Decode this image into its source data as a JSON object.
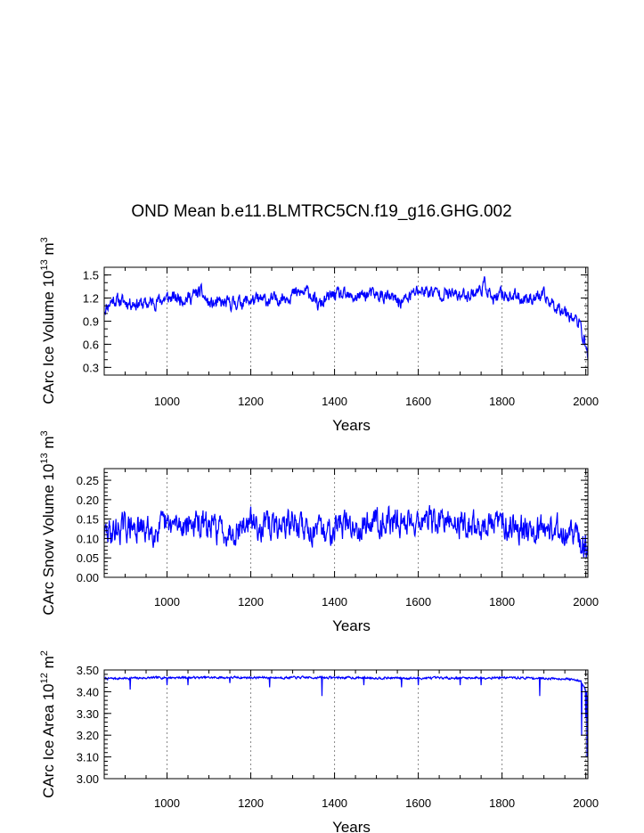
{
  "title": "OND Mean b.e11.BLMTRC5CN.f19_g16.GHG.002",
  "line_color": "#0000ff",
  "grid_color": "#888888",
  "chart_data": [
    {
      "type": "line",
      "id": "ice-volume",
      "ylabel_main": "CArc Ice Volume 10",
      "ylabel_sup": "13",
      "ylabel_unit": " m",
      "ylabel_unit_sup": "3",
      "xlabel": "Years",
      "xlim": [
        850,
        2005
      ],
      "ylim": [
        0.2,
        1.6
      ],
      "xticks": [
        1000,
        1200,
        1400,
        1600,
        1800,
        2000
      ],
      "xtick_labels": [
        "1000",
        "1200",
        "1400",
        "1600",
        "1800",
        "2000"
      ],
      "yticks": [
        0.3,
        0.6,
        0.9,
        1.2,
        1.5
      ],
      "ytick_labels": [
        "0.3",
        "0.6",
        "0.9",
        "1.2",
        "1.5"
      ],
      "y_minor_step": 0.1,
      "grid_x": [
        1000,
        1200,
        1400,
        1600,
        1800,
        2000
      ],
      "anchors": [
        [
          850,
          1.05
        ],
        [
          870,
          1.18
        ],
        [
          900,
          1.15
        ],
        [
          950,
          1.12
        ],
        [
          1000,
          1.2
        ],
        [
          1050,
          1.2
        ],
        [
          1080,
          1.28
        ],
        [
          1100,
          1.12
        ],
        [
          1150,
          1.13
        ],
        [
          1200,
          1.17
        ],
        [
          1250,
          1.17
        ],
        [
          1300,
          1.25
        ],
        [
          1340,
          1.28
        ],
        [
          1360,
          1.1
        ],
        [
          1400,
          1.25
        ],
        [
          1440,
          1.2
        ],
        [
          1480,
          1.25
        ],
        [
          1520,
          1.22
        ],
        [
          1560,
          1.15
        ],
        [
          1600,
          1.3
        ],
        [
          1650,
          1.27
        ],
        [
          1700,
          1.23
        ],
        [
          1740,
          1.28
        ],
        [
          1760,
          1.38
        ],
        [
          1780,
          1.15
        ],
        [
          1800,
          1.25
        ],
        [
          1850,
          1.2
        ],
        [
          1900,
          1.22
        ],
        [
          1920,
          1.12
        ],
        [
          1950,
          1.05
        ],
        [
          1970,
          0.95
        ],
        [
          1985,
          0.85
        ],
        [
          1995,
          0.68
        ],
        [
          2005,
          0.45
        ]
      ],
      "noise": 0.07,
      "seed": 11
    },
    {
      "type": "line",
      "id": "snow-volume",
      "ylabel_main": "CArc Snow Volume 10",
      "ylabel_sup": "13",
      "ylabel_unit": " m",
      "ylabel_unit_sup": "3",
      "xlabel": "Years",
      "xlim": [
        850,
        2005
      ],
      "ylim": [
        0.0,
        0.28
      ],
      "xticks": [
        1000,
        1200,
        1400,
        1600,
        1800,
        2000
      ],
      "xtick_labels": [
        "1000",
        "1200",
        "1400",
        "1600",
        "1800",
        "2000"
      ],
      "yticks": [
        0.0,
        0.05,
        0.1,
        0.15,
        0.2,
        0.25
      ],
      "ytick_labels": [
        "0.00",
        "0.05",
        "0.10",
        "0.15",
        "0.20",
        "0.25"
      ],
      "y_minor_step": 0.01,
      "grid_x": [
        1000,
        1200,
        1400,
        1600,
        1800,
        2000
      ],
      "anchors": [
        [
          850,
          0.11
        ],
        [
          900,
          0.13
        ],
        [
          950,
          0.12
        ],
        [
          1000,
          0.13
        ],
        [
          1050,
          0.14
        ],
        [
          1100,
          0.13
        ],
        [
          1150,
          0.12
        ],
        [
          1200,
          0.14
        ],
        [
          1250,
          0.13
        ],
        [
          1300,
          0.14
        ],
        [
          1350,
          0.12
        ],
        [
          1380,
          0.11
        ],
        [
          1400,
          0.14
        ],
        [
          1450,
          0.13
        ],
        [
          1500,
          0.15
        ],
        [
          1550,
          0.14
        ],
        [
          1600,
          0.15
        ],
        [
          1650,
          0.14
        ],
        [
          1700,
          0.14
        ],
        [
          1750,
          0.13
        ],
        [
          1800,
          0.14
        ],
        [
          1850,
          0.13
        ],
        [
          1900,
          0.13
        ],
        [
          1950,
          0.12
        ],
        [
          1980,
          0.1
        ],
        [
          2005,
          0.06
        ]
      ],
      "noise": 0.028,
      "seed": 29
    },
    {
      "type": "line",
      "id": "ice-area",
      "ylabel_main": "CArc Ice Area 10",
      "ylabel_sup": "12",
      "ylabel_unit": " m",
      "ylabel_unit_sup": "2",
      "xlabel": "Years",
      "xlim": [
        850,
        2005
      ],
      "ylim": [
        3.0,
        3.5
      ],
      "xticks": [
        1000,
        1200,
        1400,
        1600,
        1800,
        2000
      ],
      "xtick_labels": [
        "1000",
        "1200",
        "1400",
        "1600",
        "1800",
        "2000"
      ],
      "yticks": [
        3.0,
        3.1,
        3.2,
        3.3,
        3.4,
        3.5
      ],
      "ytick_labels": [
        "3.00",
        "3.10",
        "3.20",
        "3.30",
        "3.40",
        "3.50"
      ],
      "y_minor_step": 0.02,
      "grid_x": [
        1000,
        1200,
        1400,
        1600,
        1800,
        2000
      ],
      "anchors": [
        [
          850,
          3.46
        ],
        [
          1000,
          3.465
        ],
        [
          1200,
          3.465
        ],
        [
          1400,
          3.465
        ],
        [
          1600,
          3.462
        ],
        [
          1800,
          3.465
        ],
        [
          1950,
          3.46
        ],
        [
          1990,
          3.45
        ],
        [
          2005,
          3.38
        ]
      ],
      "dips": [
        [
          912,
          3.41
        ],
        [
          1000,
          3.43
        ],
        [
          1050,
          3.43
        ],
        [
          1150,
          3.44
        ],
        [
          1245,
          3.42
        ],
        [
          1370,
          3.38
        ],
        [
          1470,
          3.43
        ],
        [
          1560,
          3.42
        ],
        [
          1600,
          3.43
        ],
        [
          1700,
          3.43
        ],
        [
          1750,
          3.43
        ],
        [
          1890,
          3.38
        ],
        [
          1990,
          3.2
        ],
        [
          2000,
          3.28
        ],
        [
          2003,
          3.1
        ]
      ],
      "noise": 0.004,
      "seed": 7
    }
  ]
}
